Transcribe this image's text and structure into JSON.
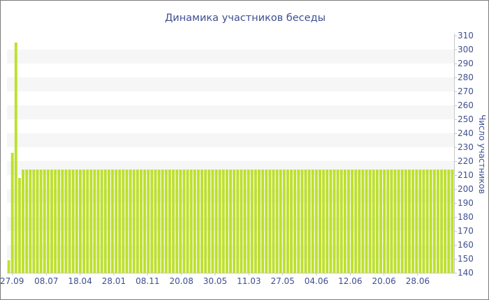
{
  "chart_data": {
    "type": "bar",
    "title": "Динамика участников беседы",
    "xlabel": "",
    "ylabel": "Число участников",
    "ylim": [
      140,
      310
    ],
    "yticks": [
      140,
      150,
      160,
      170,
      180,
      190,
      200,
      210,
      220,
      230,
      240,
      250,
      260,
      270,
      280,
      290,
      300,
      310
    ],
    "y_axis_side": "right",
    "grid": "alternating horizontal bands",
    "x_tick_labels": [
      "27.09",
      "08.07",
      "18.04",
      "28.01",
      "08.11",
      "20.08",
      "30.05",
      "11.03",
      "27.05",
      "04.06",
      "12.06",
      "20.06",
      "28.06"
    ],
    "colors": {
      "bar": "#bde02f",
      "band": "#f6f6f6",
      "text": "#3e4f8f",
      "axis": "#c8c8c8",
      "frame": "#7b7b7b"
    },
    "series": [
      {
        "values": [
          149,
          226,
          305,
          208,
          214,
          214,
          214,
          214,
          214,
          214,
          214,
          214,
          214,
          214,
          214,
          214,
          214,
          214,
          214,
          214,
          214,
          214,
          214,
          214,
          214,
          214,
          214,
          214,
          214,
          214,
          214,
          214,
          214,
          214,
          214,
          214,
          214,
          214,
          214,
          214,
          214,
          214,
          214,
          214,
          214,
          214,
          214,
          214,
          214,
          214,
          214,
          214,
          214,
          214,
          214,
          214,
          214,
          214,
          214,
          214,
          214,
          214,
          214,
          214,
          214,
          214,
          214,
          214,
          214,
          214,
          214,
          214,
          214,
          214,
          214,
          214,
          214,
          214,
          214,
          214,
          214,
          214,
          214,
          214,
          214,
          214,
          214,
          214,
          214,
          214,
          214,
          214,
          214,
          214,
          214,
          214,
          214,
          214,
          214,
          214,
          214,
          214,
          214,
          214,
          214,
          214,
          214,
          214,
          214,
          214,
          214,
          214,
          214,
          214,
          214,
          214,
          214,
          214,
          214,
          214,
          214,
          214,
          214,
          214,
          214
        ]
      }
    ]
  }
}
